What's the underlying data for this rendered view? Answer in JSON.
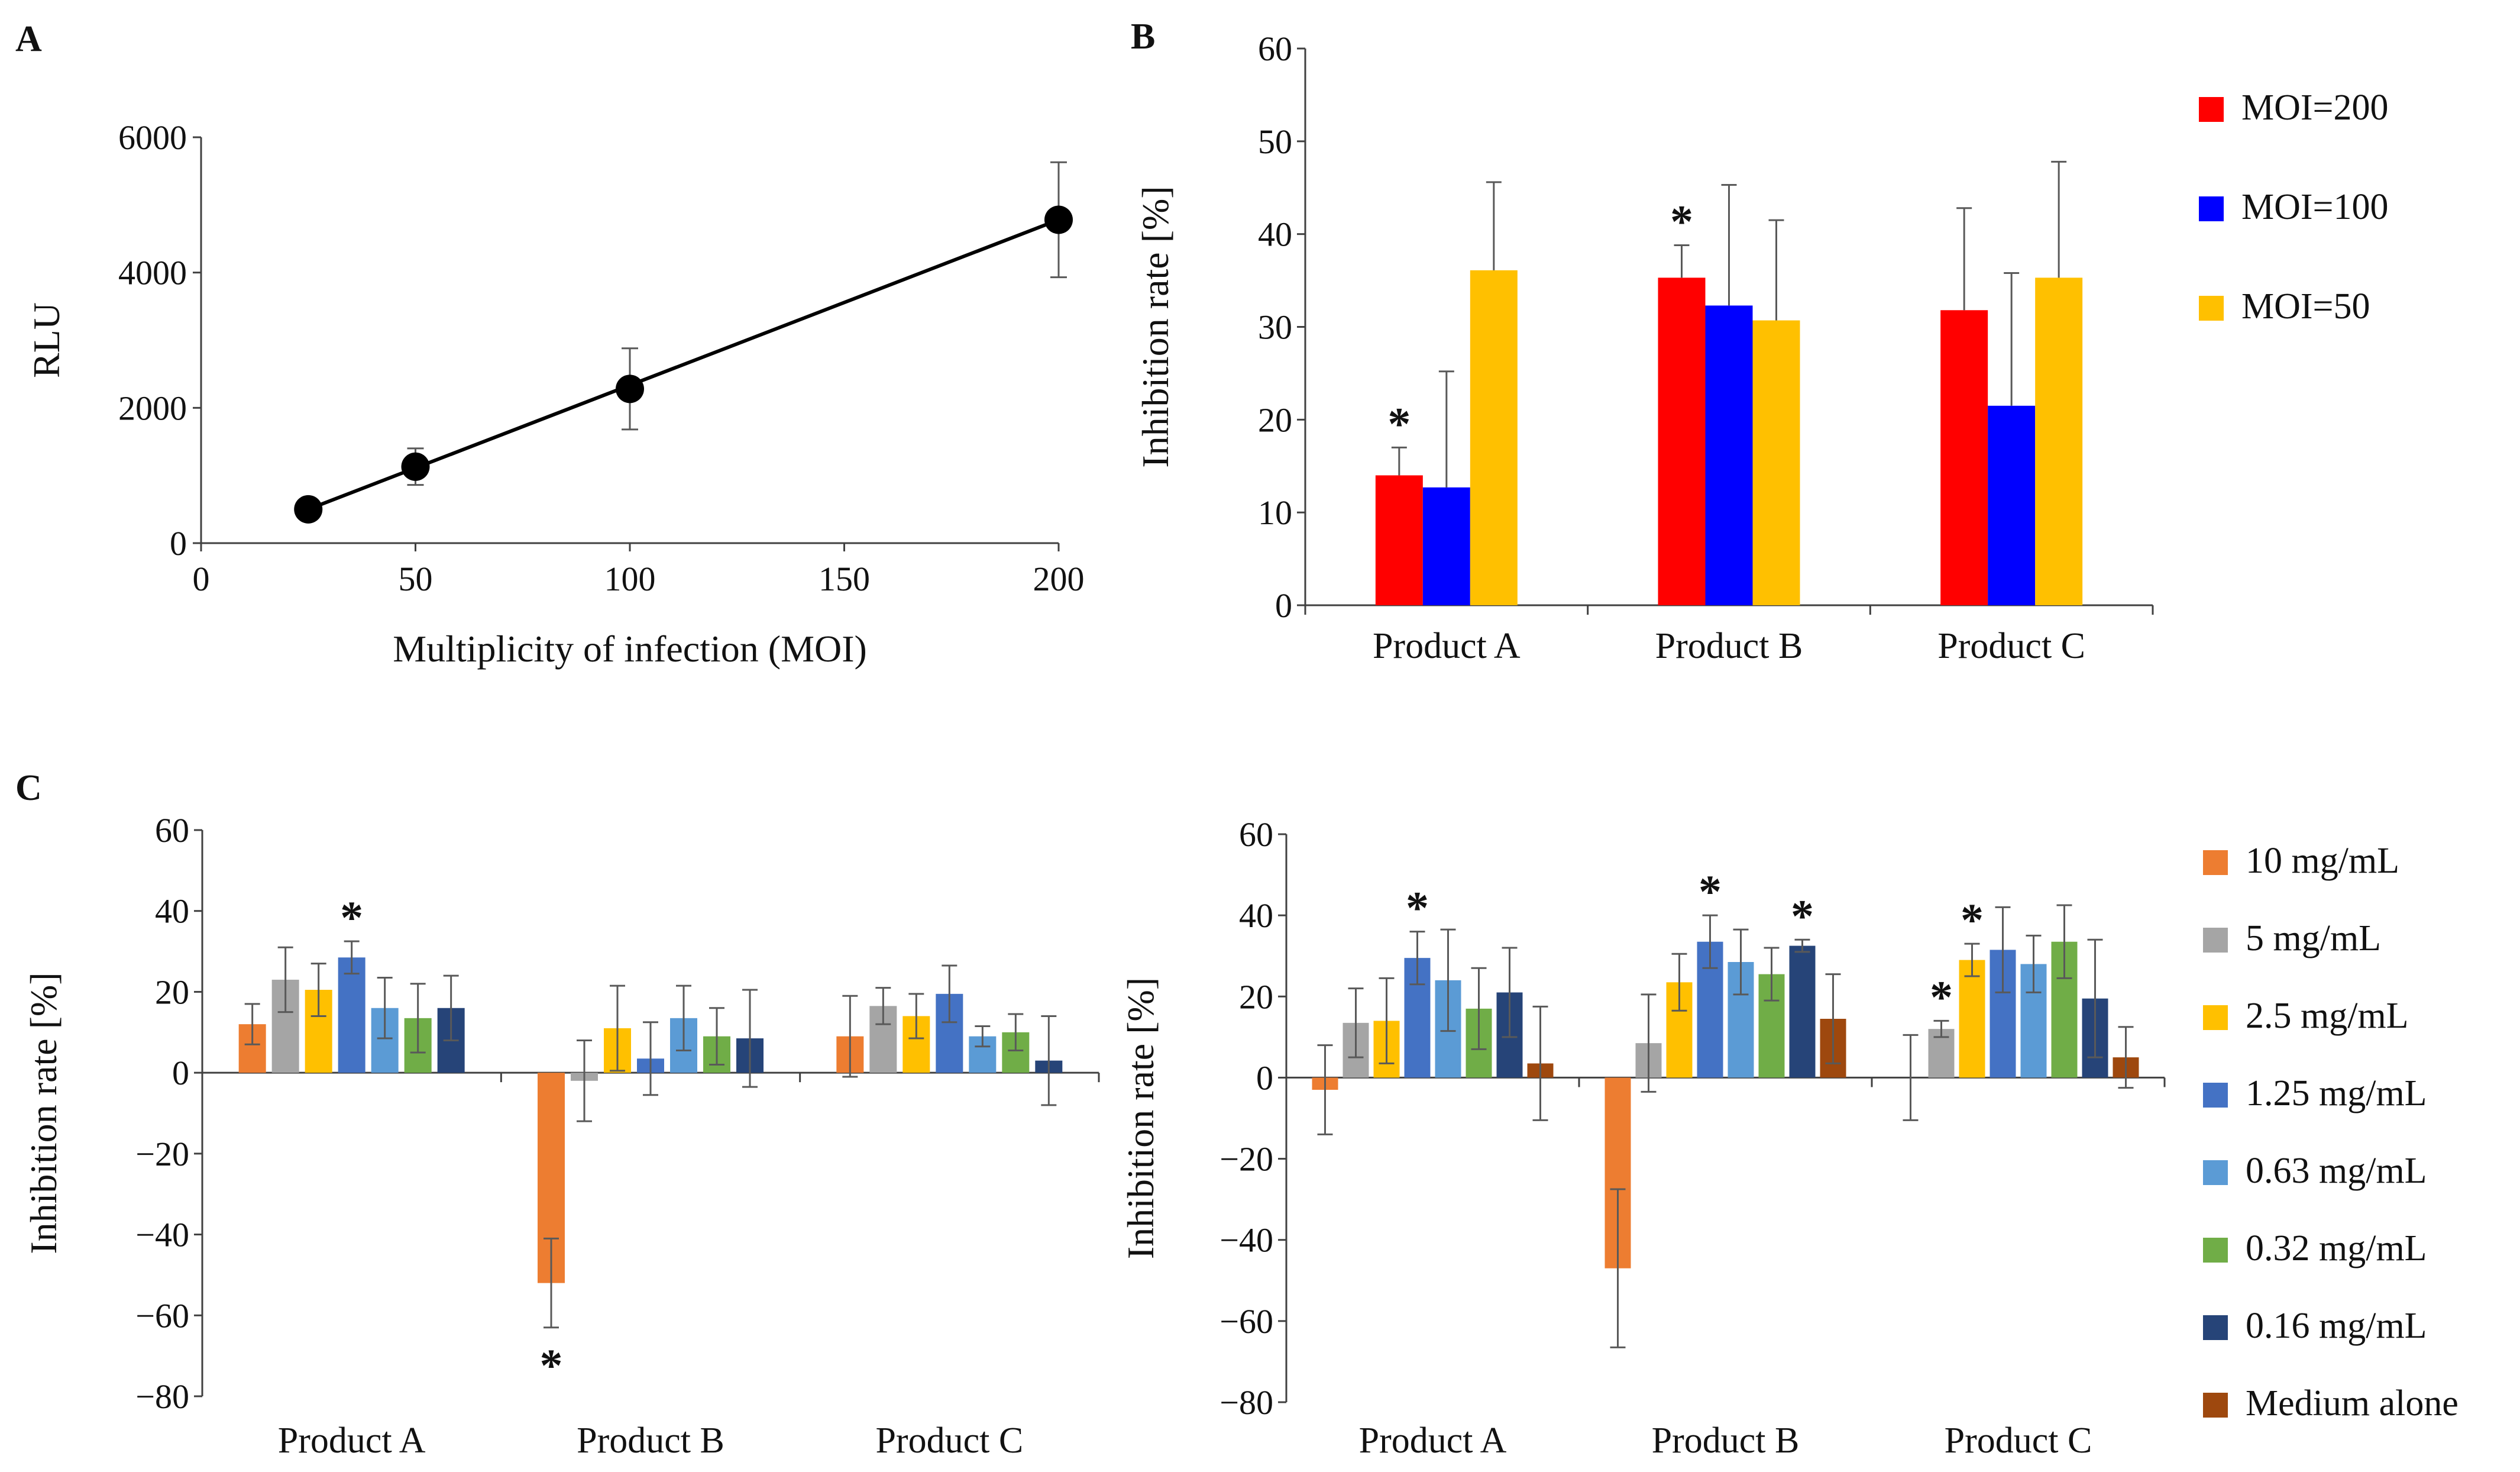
{
  "colors": {
    "axis": "#404040",
    "line": "#000000",
    "err": "#595959",
    "MOI=200": "#ff0000",
    "MOI=100": "#0000ff",
    "MOI=50": "#ffc000",
    "c_10": "#ed7d31",
    "c_5": "#a5a5a5",
    "c_2_5": "#ffc000",
    "c_1_25": "#4472c4",
    "c_0_63": "#5b9bd5",
    "c_0_32": "#70ad47",
    "c_0_16": "#264478",
    "c_med": "#9e480e"
  },
  "chart_data": [
    {
      "panel": "A",
      "type": "scatter",
      "title": "",
      "xlabel": "Multiplicity of infection (MOI)",
      "ylabel": "RLU",
      "xlim": [
        0,
        200
      ],
      "ylim": [
        0,
        6000
      ],
      "xticks": [
        0,
        50,
        100,
        150,
        200
      ],
      "yticks": [
        0,
        2000,
        4000,
        6000
      ],
      "x": [
        25,
        50,
        100,
        200
      ],
      "y": [
        500,
        1130,
        2280,
        4780
      ],
      "err": [
        0,
        270,
        600,
        850
      ],
      "trendline": true
    },
    {
      "panel": "B",
      "type": "bar",
      "title": "",
      "xlabel": "",
      "ylabel": "Inhibition rate [%]",
      "ylim": [
        0,
        60
      ],
      "yticks": [
        0,
        10,
        20,
        30,
        40,
        50,
        60
      ],
      "categories": [
        "Product A",
        "Product B",
        "Product C"
      ],
      "legend": "right",
      "series": [
        {
          "name": "MOI=200",
          "values": [
            14,
            35.3,
            31.8
          ],
          "err": [
            3,
            3.5,
            11
          ],
          "sig": [
            true,
            true,
            false
          ]
        },
        {
          "name": "MOI=100",
          "values": [
            12.7,
            32.3,
            21.5
          ],
          "err": [
            12.5,
            13,
            14.3
          ],
          "sig": [
            false,
            false,
            false
          ]
        },
        {
          "name": "MOI=50",
          "values": [
            36.1,
            30.7,
            35.3
          ],
          "err": [
            9.5,
            10.8,
            12.5
          ],
          "sig": [
            false,
            false,
            false
          ]
        }
      ]
    },
    {
      "panel": "C-left",
      "type": "bar",
      "title": "",
      "xlabel": "",
      "ylabel": "Inhibition rate [%]",
      "ylim": [
        -80,
        60
      ],
      "yticks": [
        -80,
        -60,
        -40,
        -20,
        0,
        20,
        40,
        60
      ],
      "categories": [
        "Product A",
        "Product B",
        "Product C"
      ],
      "series": [
        {
          "name": "10 mg/mL",
          "values": [
            12,
            -52,
            9
          ],
          "err": [
            5,
            11,
            10
          ],
          "sig": [
            false,
            true,
            false
          ]
        },
        {
          "name": "5 mg/mL",
          "values": [
            23,
            -2,
            16.5
          ],
          "err": [
            8,
            10,
            4.5
          ],
          "sig": [
            false,
            false,
            false
          ]
        },
        {
          "name": "2.5 mg/mL",
          "values": [
            20.5,
            11,
            14
          ],
          "err": [
            6.5,
            10.5,
            5.5
          ],
          "sig": [
            false,
            false,
            false
          ]
        },
        {
          "name": "1.25 mg/mL",
          "values": [
            28.5,
            3.5,
            19.5
          ],
          "err": [
            4,
            9,
            7
          ],
          "sig": [
            true,
            false,
            false
          ]
        },
        {
          "name": "0.63 mg/mL",
          "values": [
            16,
            13.5,
            9
          ],
          "err": [
            7.5,
            8,
            2.5
          ],
          "sig": [
            false,
            false,
            false
          ]
        },
        {
          "name": "0.32 mg/mL",
          "values": [
            13.5,
            9,
            10
          ],
          "err": [
            8.5,
            7,
            4.5
          ],
          "sig": [
            false,
            false,
            false
          ]
        },
        {
          "name": "0.16 mg/mL",
          "values": [
            16,
            8.5,
            3
          ],
          "err": [
            8,
            12,
            11
          ],
          "sig": [
            false,
            false,
            false
          ]
        }
      ]
    },
    {
      "panel": "C-right",
      "type": "bar",
      "title": "",
      "xlabel": "",
      "ylabel": "Inhibition rate [%]",
      "ylim": [
        -80,
        60
      ],
      "yticks": [
        -80,
        -60,
        -40,
        -20,
        0,
        20,
        40,
        60
      ],
      "categories": [
        "Product A",
        "Product B",
        "Product C"
      ],
      "legend": "right",
      "series": [
        {
          "name": "10 mg/mL",
          "values": [
            -3,
            -47,
            0
          ],
          "err": [
            11,
            19.5,
            10.5
          ],
          "sig": [
            false,
            false,
            false
          ]
        },
        {
          "name": "5 mg/mL",
          "values": [
            13.5,
            8.5,
            12
          ],
          "err": [
            8.5,
            12,
            2
          ],
          "sig": [
            false,
            false,
            true
          ]
        },
        {
          "name": "2.5 mg/mL",
          "values": [
            14,
            23.5,
            29
          ],
          "err": [
            10.5,
            7,
            4
          ],
          "sig": [
            false,
            false,
            true
          ]
        },
        {
          "name": "1.25 mg/mL",
          "values": [
            29.5,
            33.5,
            31.5
          ],
          "err": [
            6.5,
            6.5,
            10.5
          ],
          "sig": [
            true,
            true,
            false
          ]
        },
        {
          "name": "0.63 mg/mL",
          "values": [
            24,
            28.5,
            28
          ],
          "err": [
            12.5,
            8,
            7
          ],
          "sig": [
            false,
            false,
            false
          ]
        },
        {
          "name": "0.32 mg/mL",
          "values": [
            17,
            25.5,
            33.5
          ],
          "err": [
            10,
            6.5,
            9
          ],
          "sig": [
            false,
            false,
            false
          ]
        },
        {
          "name": "0.16 mg/mL",
          "values": [
            21,
            32.5,
            19.5
          ],
          "err": [
            11,
            1.5,
            14.5
          ],
          "sig": [
            false,
            true,
            false
          ]
        },
        {
          "name": "Medium alone",
          "values": [
            3.5,
            14.5,
            5
          ],
          "err": [
            14,
            11,
            7.5
          ],
          "sig": [
            false,
            false,
            false
          ]
        }
      ]
    }
  ],
  "panels": {
    "a": "A",
    "b": "B",
    "c": "C"
  },
  "sig_mark": "*"
}
